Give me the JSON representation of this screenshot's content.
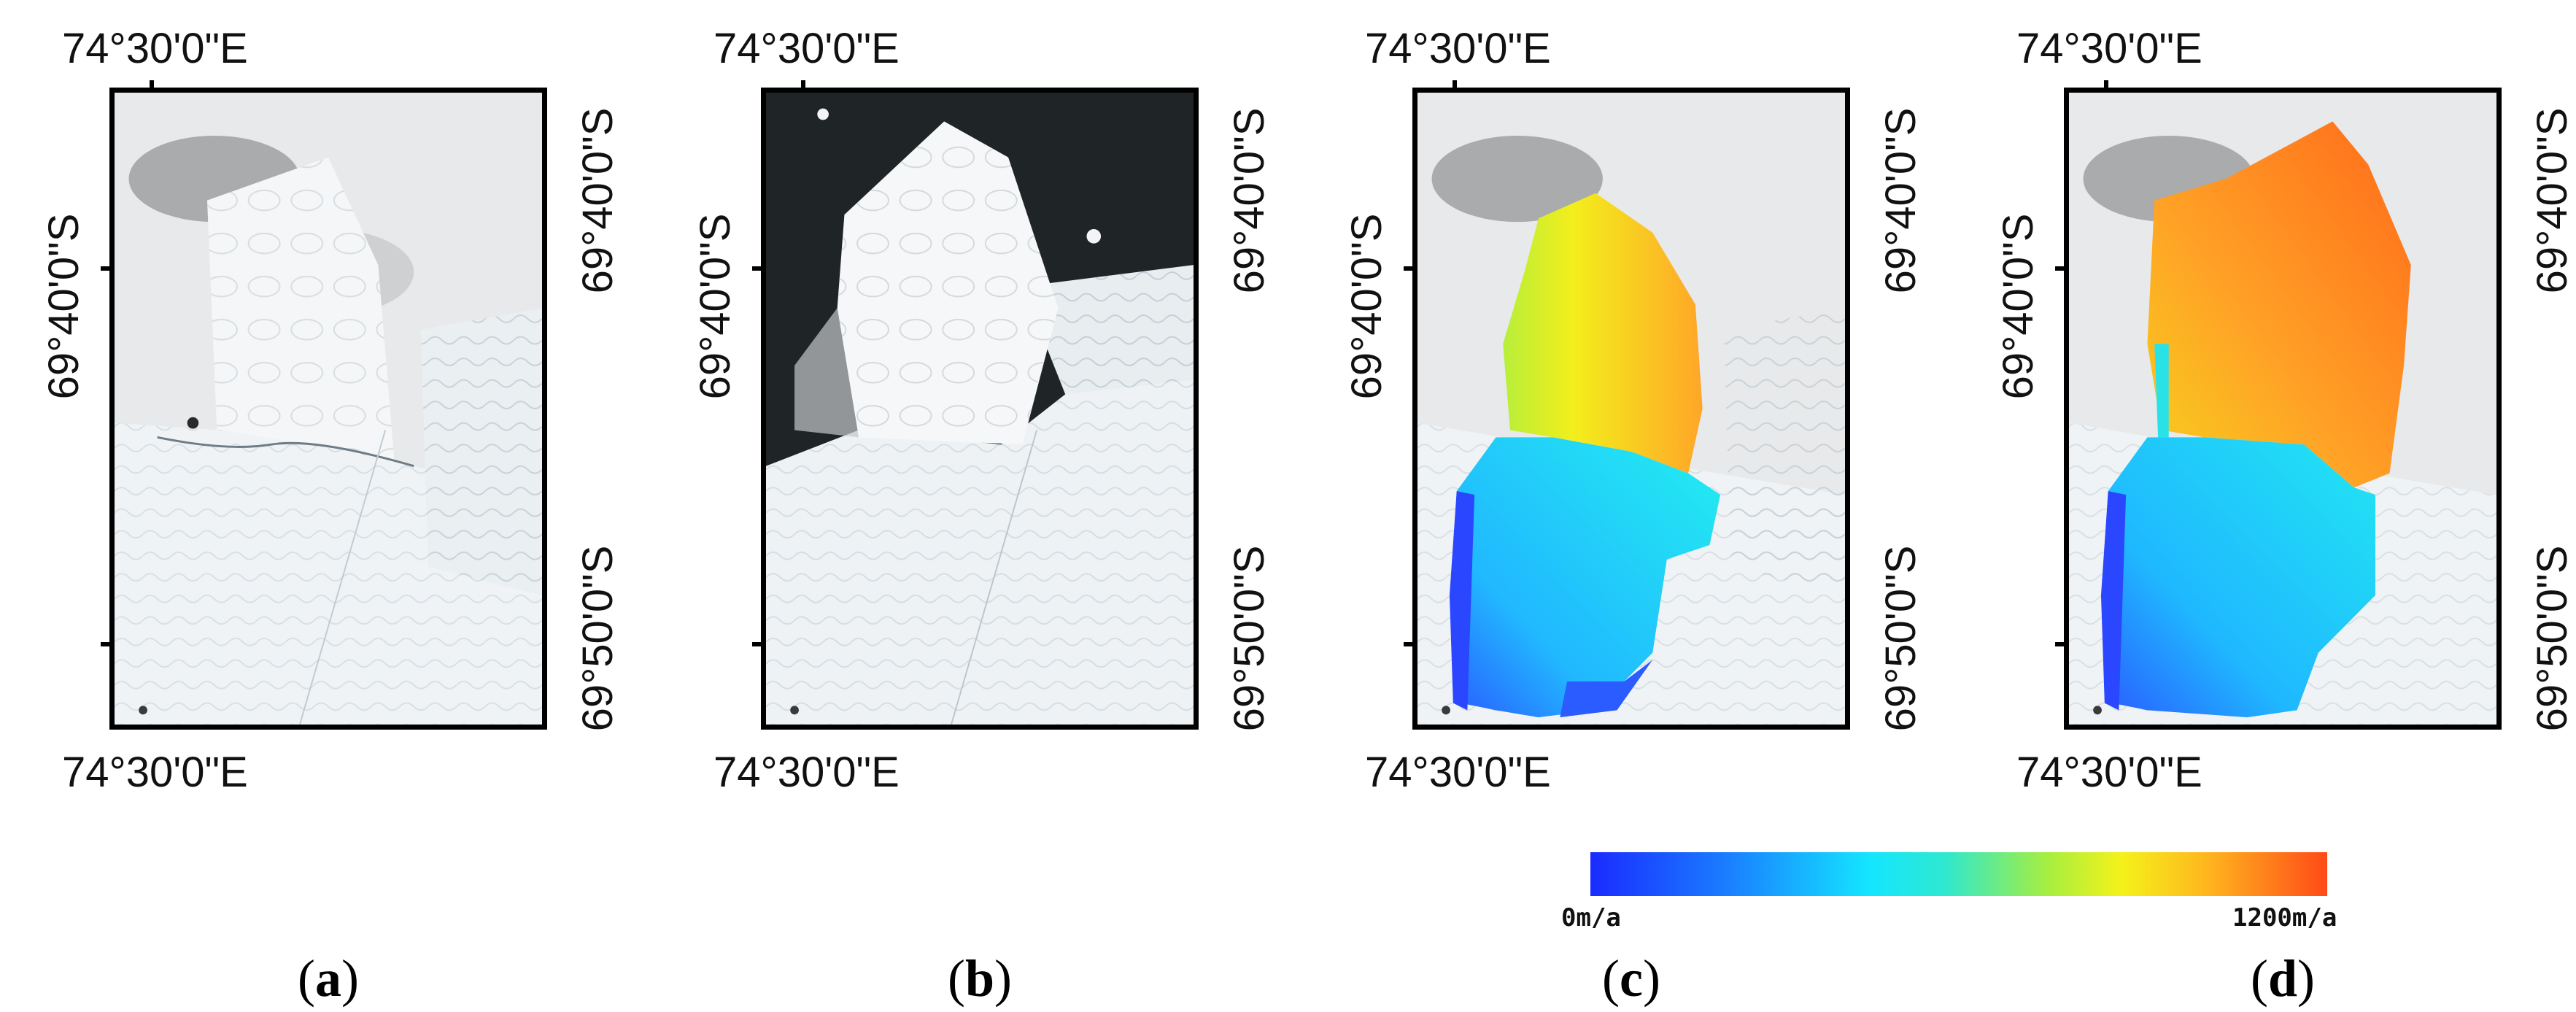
{
  "panels": [
    {
      "id": "a",
      "lon_top": "74°30'0\"E",
      "lon_bottom": "74°30'0\"E",
      "lat_upper": "69°40'0\"S",
      "lat_lower": "69°50'0\"S",
      "caption_label": "a"
    },
    {
      "id": "b",
      "lon_top": "74°30'0\"E",
      "lon_bottom": "74°30'0\"E",
      "lat_upper": "69°40'0\"S",
      "lat_lower": "69°50'0\"S",
      "caption_label": "b"
    },
    {
      "id": "c",
      "lon_top": "74°30'0\"E",
      "lon_bottom": "74°30'0\"E",
      "lat_upper": "69°40'0\"S",
      "lat_lower": "69°50'0\"S",
      "caption_label": "c"
    },
    {
      "id": "d",
      "lon_top": "74°30'0\"E",
      "lon_bottom": "74°30'0\"E",
      "lat_upper": "69°40'0\"S",
      "lat_lower": "69°50'0\"S",
      "caption_label": "d"
    }
  ],
  "legend": {
    "min_label": "0m/a",
    "max_label": "1200m/a",
    "min_value": 0,
    "max_value": 1200,
    "unit": "m/a",
    "colors": [
      "#1a2bff",
      "#14e6ff",
      "#f4f21a",
      "#ff4a18"
    ]
  },
  "colors": {
    "ice": "#eef1f3",
    "ocean": "#1e2326",
    "frame": "#000000"
  }
}
